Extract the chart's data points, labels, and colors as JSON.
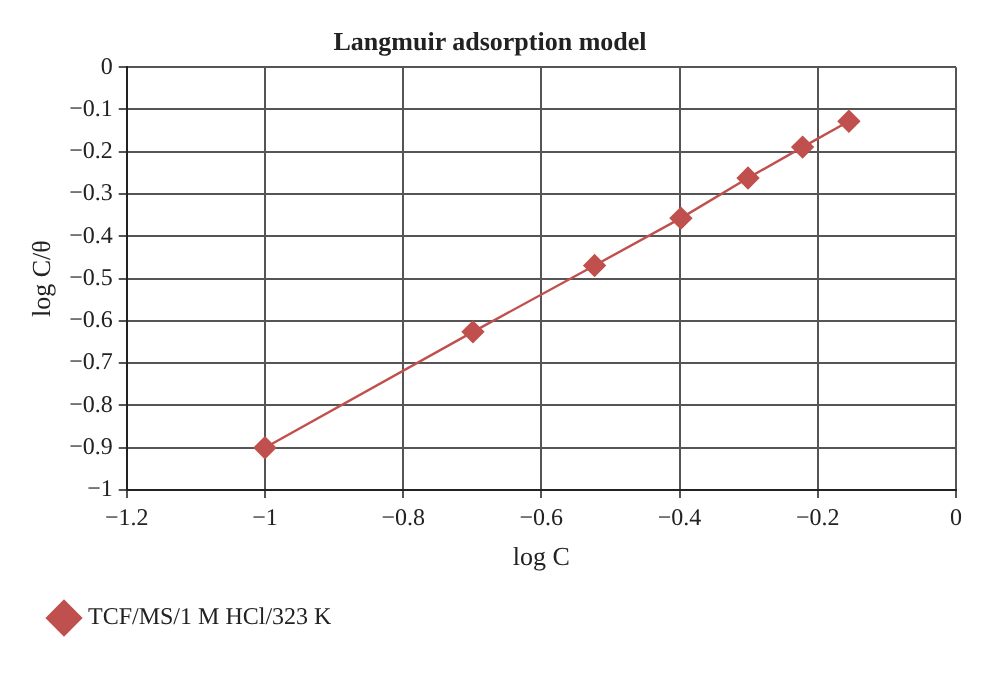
{
  "chart_data": {
    "type": "line",
    "title": "Langmuir adsorption model",
    "xlabel": "log C",
    "ylabel": "log C/θ",
    "x": [
      -1,
      -0.699,
      -0.523,
      -0.398,
      -0.301,
      -0.222,
      -0.155
    ],
    "series": [
      {
        "name": "TCF/MS/1 M HCl/323 K",
        "color": "#c0504d",
        "values": [
          -0.9,
          -0.626,
          -0.469,
          -0.357,
          -0.262,
          -0.189,
          -0.128
        ]
      }
    ],
    "xlim": [
      -1.2,
      0
    ],
    "xticks": [
      -1.2,
      -1,
      -0.8,
      -0.6,
      -0.4,
      -0.2,
      0
    ],
    "ylim": [
      -1,
      0
    ],
    "yticks": [
      -1,
      -0.9,
      -0.8,
      -0.7,
      -0.6,
      -0.5,
      -0.4,
      -0.3,
      -0.2,
      -0.1,
      0
    ],
    "grid": true,
    "legend": "bottom left",
    "marker": "diamond",
    "line_style": "solid"
  }
}
